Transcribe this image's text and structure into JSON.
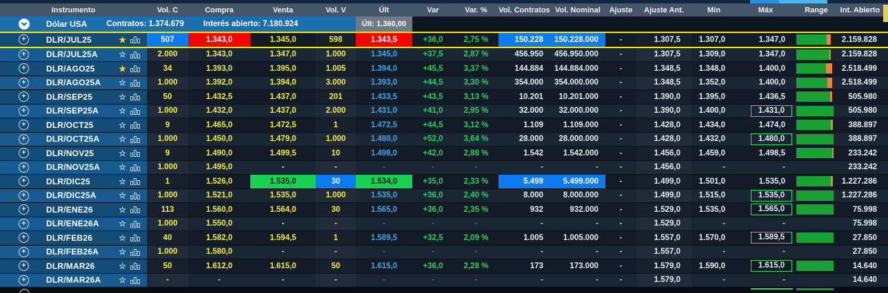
{
  "colors": {
    "accent_yellow": "#f0ee35",
    "positive_green": "#20d25e",
    "last_blue": "#3fa3e8",
    "bar_green": "#18a233",
    "bar_orange": "#ef813c",
    "row_highlight_border": "#ffe60a",
    "group_blue": "#1a6fae",
    "cell_bg": {
      "red": "#f20500",
      "green": "#19d054",
      "blue": "#0d7bf0"
    }
  },
  "icons": {
    "plus": "+",
    "favorite_on": "★",
    "favorite_off": "☆"
  },
  "table": {
    "columns": [
      {
        "key": "instrument",
        "label": "Instrumento"
      },
      {
        "key": "vol_c",
        "label": "Vol. C"
      },
      {
        "key": "compra",
        "label": "Compra"
      },
      {
        "key": "venta",
        "label": "Venta"
      },
      {
        "key": "vol_v",
        "label": "Vol. V"
      },
      {
        "key": "ult",
        "label": "Últ"
      },
      {
        "key": "var",
        "label": "Var"
      },
      {
        "key": "var_pct",
        "label": "Var. %"
      },
      {
        "key": "vol_contratos",
        "label": "Vol. Contratos"
      },
      {
        "key": "vol_nominal",
        "label": "Vol. Nominal"
      },
      {
        "key": "ajuste",
        "label": "Ajuste"
      },
      {
        "key": "ajuste_ant",
        "label": "Ajuste Ant."
      },
      {
        "key": "min",
        "label": "Mín"
      },
      {
        "key": "max",
        "label": "Máx"
      },
      {
        "key": "range",
        "label": "Range"
      },
      {
        "key": "int_abierto",
        "label": "Int. Abierto"
      }
    ],
    "group": {
      "name": "Dólar USA",
      "contratos_label": "Contratos: 1.374.679",
      "interes_label": "Interés abierto: 7.180.924",
      "ult_chip": "Últ: 1.360,00"
    },
    "rows": [
      {
        "instrument": "DLR/JUL25",
        "starred": true,
        "highlight": true,
        "vol_c": {
          "t": "507",
          "bg": "blue"
        },
        "compra": {
          "t": "1.343,0",
          "bg": "red"
        },
        "venta": "1.345,0",
        "vol_v": "598",
        "ult": {
          "t": "1.343,5",
          "bg": "red"
        },
        "var": "+36,0",
        "var_pct": "2,75 %",
        "vol_contratos": {
          "t": "150.228",
          "bg": "blue"
        },
        "vol_nominal": {
          "t": "150.228.000",
          "bg": "blue"
        },
        "ajuste": "-",
        "ajuste_ant": "1.307,5",
        "min": "1.307,0",
        "max": "1.347,0",
        "range": {
          "green": 82,
          "orange": 10
        },
        "int_abierto": "2.159.828"
      },
      {
        "instrument": "DLR/JUL25A",
        "starred": false,
        "vol_c": "2.000",
        "compra": "1.343,0",
        "venta": "1.347,0",
        "vol_v": "1.000",
        "ult": "1.345,0",
        "var": "+37,5",
        "var_pct": "2,87 %",
        "vol_contratos": "456.950",
        "vol_nominal": "456.950.000",
        "ajuste": "-",
        "ajuste_ant": "1.307,5",
        "min": "1.309,0",
        "max": "1.347,0",
        "range": {
          "green": 88,
          "orange": 5
        },
        "int_abierto": "2.159.828"
      },
      {
        "instrument": "DLR/AGO25",
        "starred": true,
        "vol_c": "34",
        "compra": "1.393,0",
        "venta": "1.395,0",
        "vol_v": "1.005",
        "ult": "1.394,0",
        "var": "+45,5",
        "var_pct": "3,37 %",
        "vol_contratos": "144.884",
        "vol_nominal": "144.884.000",
        "ajuste": "-",
        "ajuste_ant": "1.348,5",
        "min": "1.348,0",
        "max": "1.400,0",
        "range": {
          "green": 80,
          "orange": 17
        },
        "int_abierto": "2.518.499"
      },
      {
        "instrument": "DLR/AGO25A",
        "starred": false,
        "vol_c": "1.000",
        "compra": "1.392,0",
        "venta": "1.394,0",
        "vol_v": "3.000",
        "ult": "1.393,0",
        "var": "+44,5",
        "var_pct": "3,30 %",
        "vol_contratos": "354.000",
        "vol_nominal": "354.000.000",
        "ajuste": "-",
        "ajuste_ant": "1.348,5",
        "min": "1.352,0",
        "max": "1.400,0",
        "range": {
          "green": 83,
          "orange": 14
        },
        "int_abierto": "2.518.499"
      },
      {
        "instrument": "DLR/SEP25",
        "starred": false,
        "vol_c": "50",
        "compra": "1.432,5",
        "venta": "1.437,0",
        "vol_v": "201",
        "ult": "1.433,5",
        "var": "+43,5",
        "var_pct": "3,13 %",
        "vol_contratos": "10.201",
        "vol_nominal": "10.201.000",
        "ajuste": "-",
        "ajuste_ant": "1.390,0",
        "min": "1.395,0",
        "max": "1.436,5",
        "range": {
          "green": 90,
          "orange": 6
        },
        "int_abierto": "505.980"
      },
      {
        "instrument": "DLR/SEP25A",
        "starred": false,
        "vol_c": "1.000",
        "compra": "1.432,0",
        "venta": "1.437,0",
        "vol_v": "2.000",
        "ult": "1.431,0",
        "var": "+41,0",
        "var_pct": "2,95 %",
        "vol_contratos": "32.000",
        "vol_nominal": "32.000.000",
        "ajuste": "-",
        "ajuste_ant": "1.390,0",
        "min": "1.400,0",
        "max": {
          "t": "1.431,0",
          "boxed": true
        },
        "range": {
          "green": 100,
          "orange": 0
        },
        "int_abierto": "505.980"
      },
      {
        "instrument": "DLR/OCT25",
        "starred": false,
        "vol_c": "9",
        "compra": "1.465,0",
        "venta": "1.472,5",
        "vol_v": "1",
        "ult": "1.472,5",
        "var": "+44,5",
        "var_pct": "3,12 %",
        "vol_contratos": "1.109",
        "vol_nominal": "1.109.000",
        "ajuste": "-",
        "ajuste_ant": "1.428,0",
        "min": "1.434,0",
        "max": "1.474,0",
        "range": {
          "green": 93,
          "orange": 5
        },
        "int_abierto": "388.897"
      },
      {
        "instrument": "DLR/OCT25A",
        "starred": false,
        "vol_c": "1.000",
        "compra": "1.450,0",
        "venta": "1.479,0",
        "vol_v": "1.000",
        "ult": "1.480,0",
        "var": "+52,0",
        "var_pct": "3,64 %",
        "vol_contratos": "28.000",
        "vol_nominal": "28.000.000",
        "ajuste": "-",
        "ajuste_ant": "1.428,0",
        "min": "1.432,0",
        "max": {
          "t": "1.480,0",
          "boxed": true
        },
        "range": {
          "green": 100,
          "orange": 0
        },
        "int_abierto": "388.897"
      },
      {
        "instrument": "DLR/NOV25",
        "starred": false,
        "vol_c": "9",
        "compra": "1.490,0",
        "venta": "1.499,5",
        "vol_v": "10",
        "ult": "1.498,0",
        "var": "+42,0",
        "var_pct": "2,88 %",
        "vol_contratos": "1.542",
        "vol_nominal": "1.542.000",
        "ajuste": "-",
        "ajuste_ant": "1.456,0",
        "min": "1.459,0",
        "max": "1.498,5",
        "range": {
          "green": 96,
          "orange": 4
        },
        "int_abierto": "233.242"
      },
      {
        "instrument": "DLR/NOV25A",
        "starred": false,
        "vol_c": "1.000",
        "compra": "1.495,0",
        "venta": "-",
        "vol_v": "-",
        "ult": "-",
        "var": "-",
        "var_pct": "-",
        "vol_contratos": "-",
        "vol_nominal": "-",
        "ajuste": "-",
        "ajuste_ant": "1.456,0",
        "min": "-",
        "max": "-",
        "range": null,
        "int_abierto": "233.242"
      },
      {
        "instrument": "DLR/DIC25",
        "starred": false,
        "vol_c": "1",
        "compra": "1.526,0",
        "venta": {
          "t": "1.535,0",
          "bg": "green"
        },
        "vol_v": {
          "t": "30",
          "bg": "blue"
        },
        "ult": {
          "t": "1.534,0",
          "bg": "green"
        },
        "var": "+35,0",
        "var_pct": "2,33 %",
        "vol_contratos": {
          "t": "5.499",
          "bg": "blue"
        },
        "vol_nominal": {
          "t": "5.499.000",
          "bg": "blue"
        },
        "ajuste": "-",
        "ajuste_ant": "1.499,0",
        "min": "1.501,0",
        "max": "1.535,0",
        "range": {
          "green": 93,
          "orange": 5
        },
        "int_abierto": "1.227.286"
      },
      {
        "instrument": "DLR/DIC25A",
        "starred": false,
        "vol_c": "1.000",
        "compra": "1.521,0",
        "venta": "1.535,0",
        "vol_v": "1.000",
        "ult": "1.535,0",
        "var": "+36,0",
        "var_pct": "2,40 %",
        "vol_contratos": "8.000",
        "vol_nominal": "8.000.000",
        "ajuste": "-",
        "ajuste_ant": "1.499,0",
        "min": "1.515,0",
        "max": {
          "t": "1.535,0",
          "boxed": true
        },
        "range": {
          "green": 100,
          "orange": 0
        },
        "int_abierto": "1.227.286"
      },
      {
        "instrument": "DLR/ENE26",
        "starred": false,
        "vol_c": "113",
        "compra": "1.560,0",
        "venta": "1.564,0",
        "vol_v": "30",
        "ult": "1.565,0",
        "var": "+36,0",
        "var_pct": "2,35 %",
        "vol_contratos": "932",
        "vol_nominal": "932.000",
        "ajuste": "-",
        "ajuste_ant": "1.529,0",
        "min": "1.535,0",
        "max": {
          "t": "1.565,0",
          "boxed": true
        },
        "range": {
          "green": 100,
          "orange": 0
        },
        "int_abierto": "75.998"
      },
      {
        "instrument": "DLR/ENE26A",
        "starred": false,
        "vol_c": "1.000",
        "compra": "1.550,0",
        "venta": "-",
        "vol_v": "-",
        "ult": "-",
        "var": "-",
        "var_pct": "-",
        "vol_contratos": "-",
        "vol_nominal": "-",
        "ajuste": "-",
        "ajuste_ant": "1.529,0",
        "min": "-",
        "max": "-",
        "range": null,
        "int_abierto": "75.998"
      },
      {
        "instrument": "DLR/FEB26",
        "starred": false,
        "vol_c": "40",
        "compra": "1.582,0",
        "venta": "1.594,5",
        "vol_v": "1",
        "ult": "1.589,5",
        "var": "+32,5",
        "var_pct": "2,09 %",
        "vol_contratos": "1.005",
        "vol_nominal": "1.005.000",
        "ajuste": "-",
        "ajuste_ant": "1.557,0",
        "min": "1.570,0",
        "max": {
          "t": "1.589,5",
          "boxed": true
        },
        "range": {
          "green": 100,
          "orange": 0
        },
        "int_abierto": "27.850"
      },
      {
        "instrument": "DLR/FEB26A",
        "starred": false,
        "vol_c": "1.000",
        "compra": "1.580,0",
        "venta": "-",
        "vol_v": "-",
        "ult": "-",
        "var": "-",
        "var_pct": "-",
        "vol_contratos": "-",
        "vol_nominal": "-",
        "ajuste": "-",
        "ajuste_ant": "1.557,0",
        "min": "-",
        "max": "-",
        "range": null,
        "int_abierto": "27.850"
      },
      {
        "instrument": "DLR/MAR26",
        "starred": false,
        "vol_c": "50",
        "compra": "1.612,0",
        "venta": "1.615,0",
        "vol_v": "50",
        "ult": "1.615,0",
        "var": "+36,0",
        "var_pct": "2,28 %",
        "vol_contratos": "173",
        "vol_nominal": "173.000",
        "ajuste": "-",
        "ajuste_ant": "1.579,0",
        "min": "1.590,0",
        "max": {
          "t": "1.615,0",
          "boxed": true
        },
        "range": {
          "green": 100,
          "orange": 0
        },
        "int_abierto": "14.640"
      },
      {
        "instrument": "DLR/MAR26A",
        "starred": false,
        "vol_c": "-",
        "compra": "-",
        "venta": "-",
        "vol_v": "-",
        "ult": "-",
        "var": "-",
        "var_pct": "-",
        "vol_contratos": "-",
        "vol_nominal": "-",
        "ajuste": "-",
        "ajuste_ant": "1.579,0",
        "min": "-",
        "max": "-",
        "range": null,
        "int_abierto": "14.640"
      }
    ]
  }
}
